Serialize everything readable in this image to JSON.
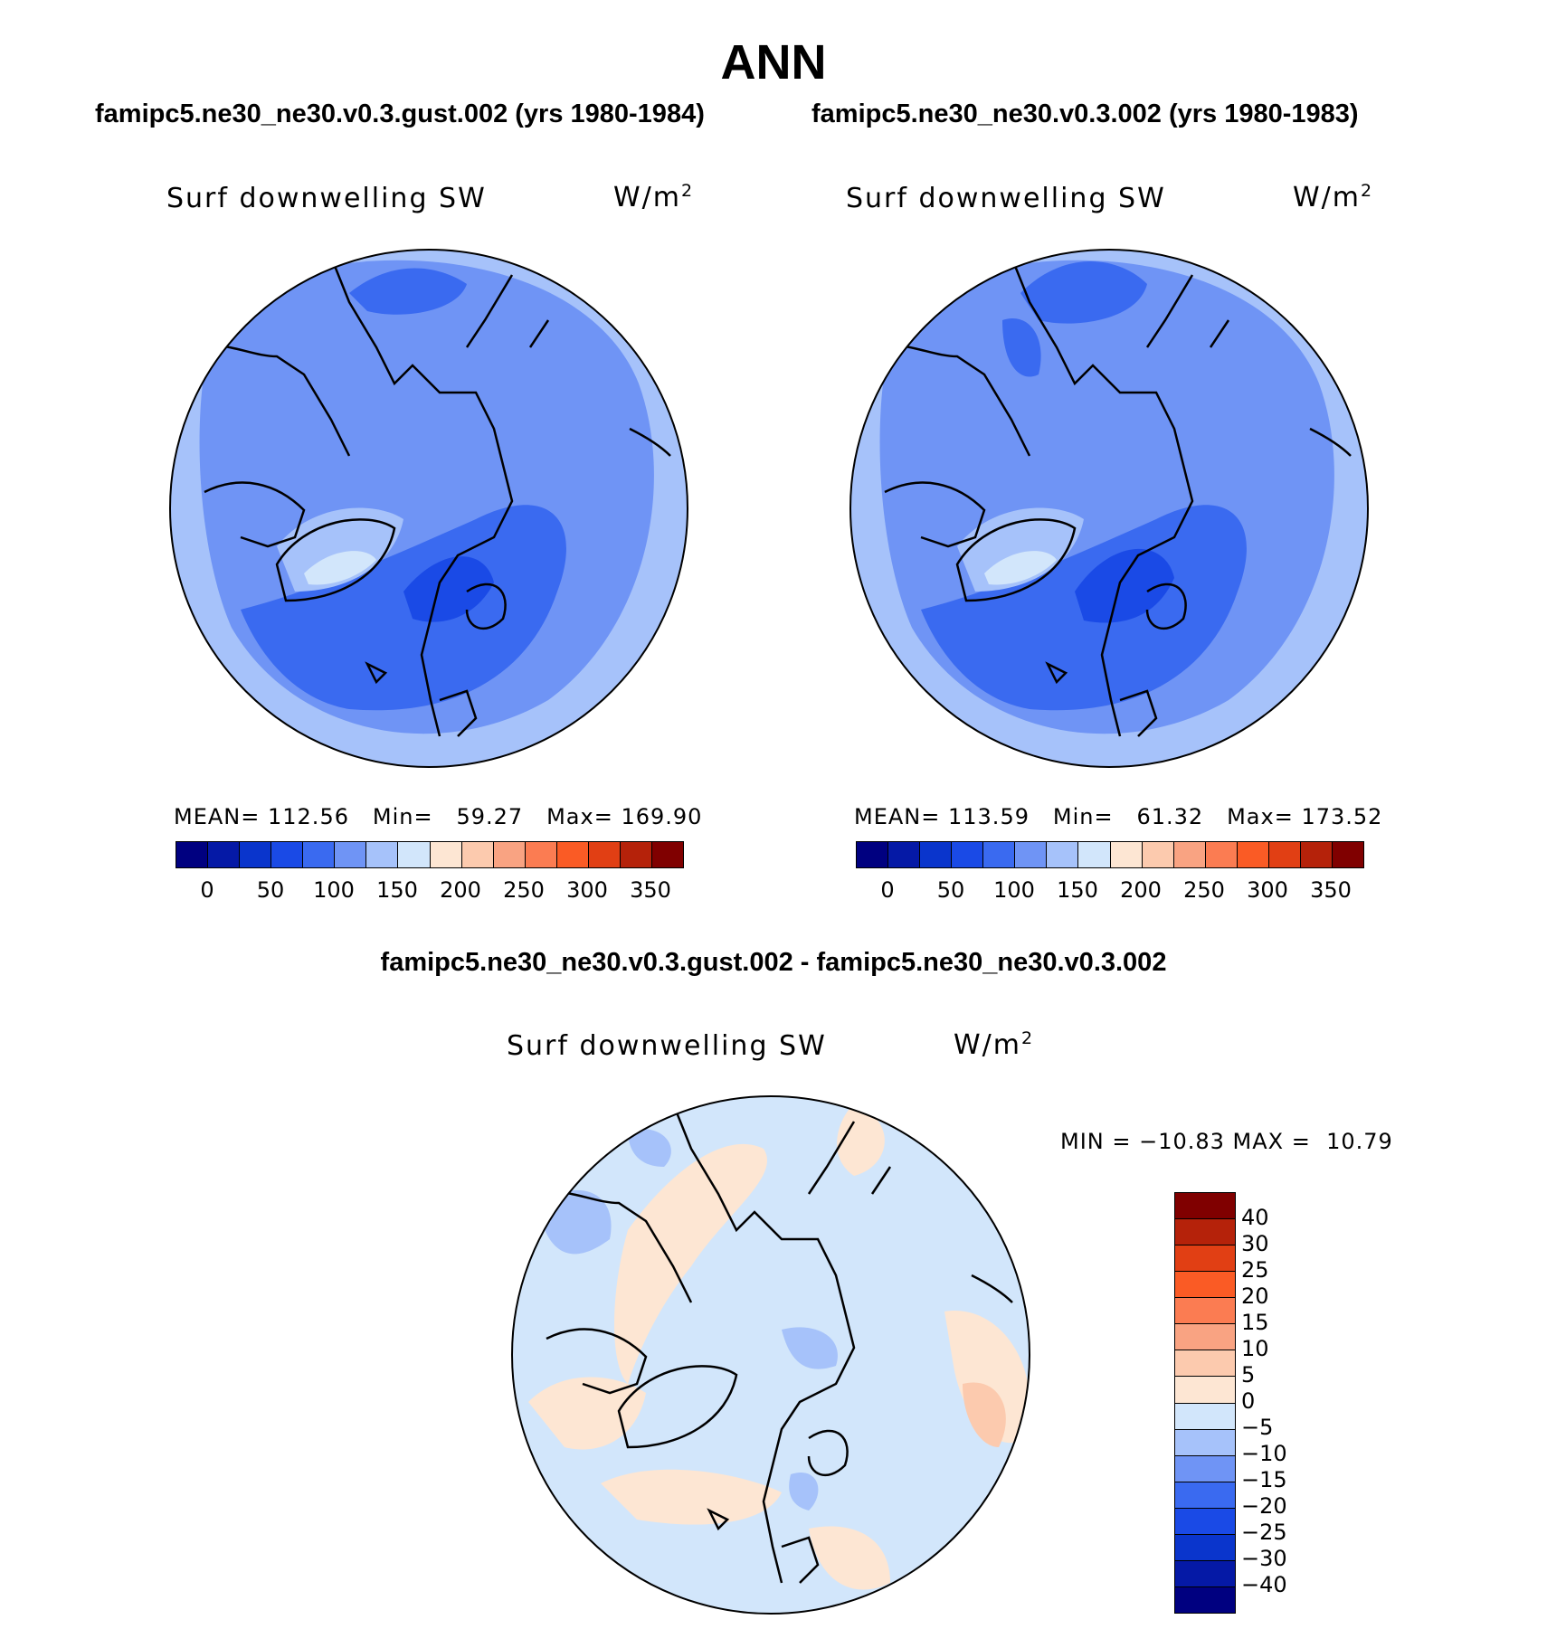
{
  "figure": {
    "title": "ANN"
  },
  "panels": [
    {
      "case": "famipc5.ne30_ne30.v0.3.gust.002 (yrs 1980-1984)",
      "variable": "Surf downwelling SW",
      "units": "W/m",
      "units_exp": "2",
      "stats": {
        "mean_label": "MEAN=",
        "mean": "112.56",
        "min_label": "Min=",
        "min": "59.27",
        "max_label": "Max=",
        "max": "169.90"
      }
    },
    {
      "case": "famipc5.ne30_ne30.v0.3.002 (yrs 1980-1983)",
      "variable": "Surf downwelling SW",
      "units": "W/m",
      "units_exp": "2",
      "stats": {
        "mean_label": "MEAN=",
        "mean": "113.59",
        "min_label": "Min=",
        "min": "61.32",
        "max_label": "Max=",
        "max": "173.52"
      }
    }
  ],
  "abs_colorbar": {
    "labels": [
      "0",
      "50",
      "100",
      "150",
      "200",
      "250",
      "300",
      "350"
    ],
    "colors": [
      "#000080",
      "#0519a6",
      "#0a35cc",
      "#1a4ae6",
      "#3a6af0",
      "#6f94f5",
      "#a6c2fa",
      "#d2e6fb",
      "#fde6d3",
      "#fccaae",
      "#f9a382",
      "#fb7c52",
      "#fa5b25",
      "#e13f14",
      "#b5220a",
      "#800000"
    ]
  },
  "diff_panel": {
    "case": "famipc5.ne30_ne30.v0.3.gust.002 - famipc5.ne30_ne30.v0.3.002",
    "variable": "Surf downwelling SW",
    "units": "W/m",
    "units_exp": "2",
    "stats_text": "MIN = −10.83 MAX =  10.79"
  },
  "diff_colorbar": {
    "labels": [
      "40",
      "30",
      "25",
      "20",
      "15",
      "10",
      "5",
      "0",
      "−5",
      "−10",
      "−15",
      "−20",
      "−25",
      "−30",
      "−40"
    ],
    "colors": [
      "#800000",
      "#b5220a",
      "#e13f14",
      "#fa5b25",
      "#fb7c52",
      "#f9a382",
      "#fccaae",
      "#fde6d3",
      "#d2e6fb",
      "#a6c2fa",
      "#6f94f5",
      "#3a6af0",
      "#1a4ae6",
      "#0a35cc",
      "#0519a6",
      "#000080"
    ]
  }
}
